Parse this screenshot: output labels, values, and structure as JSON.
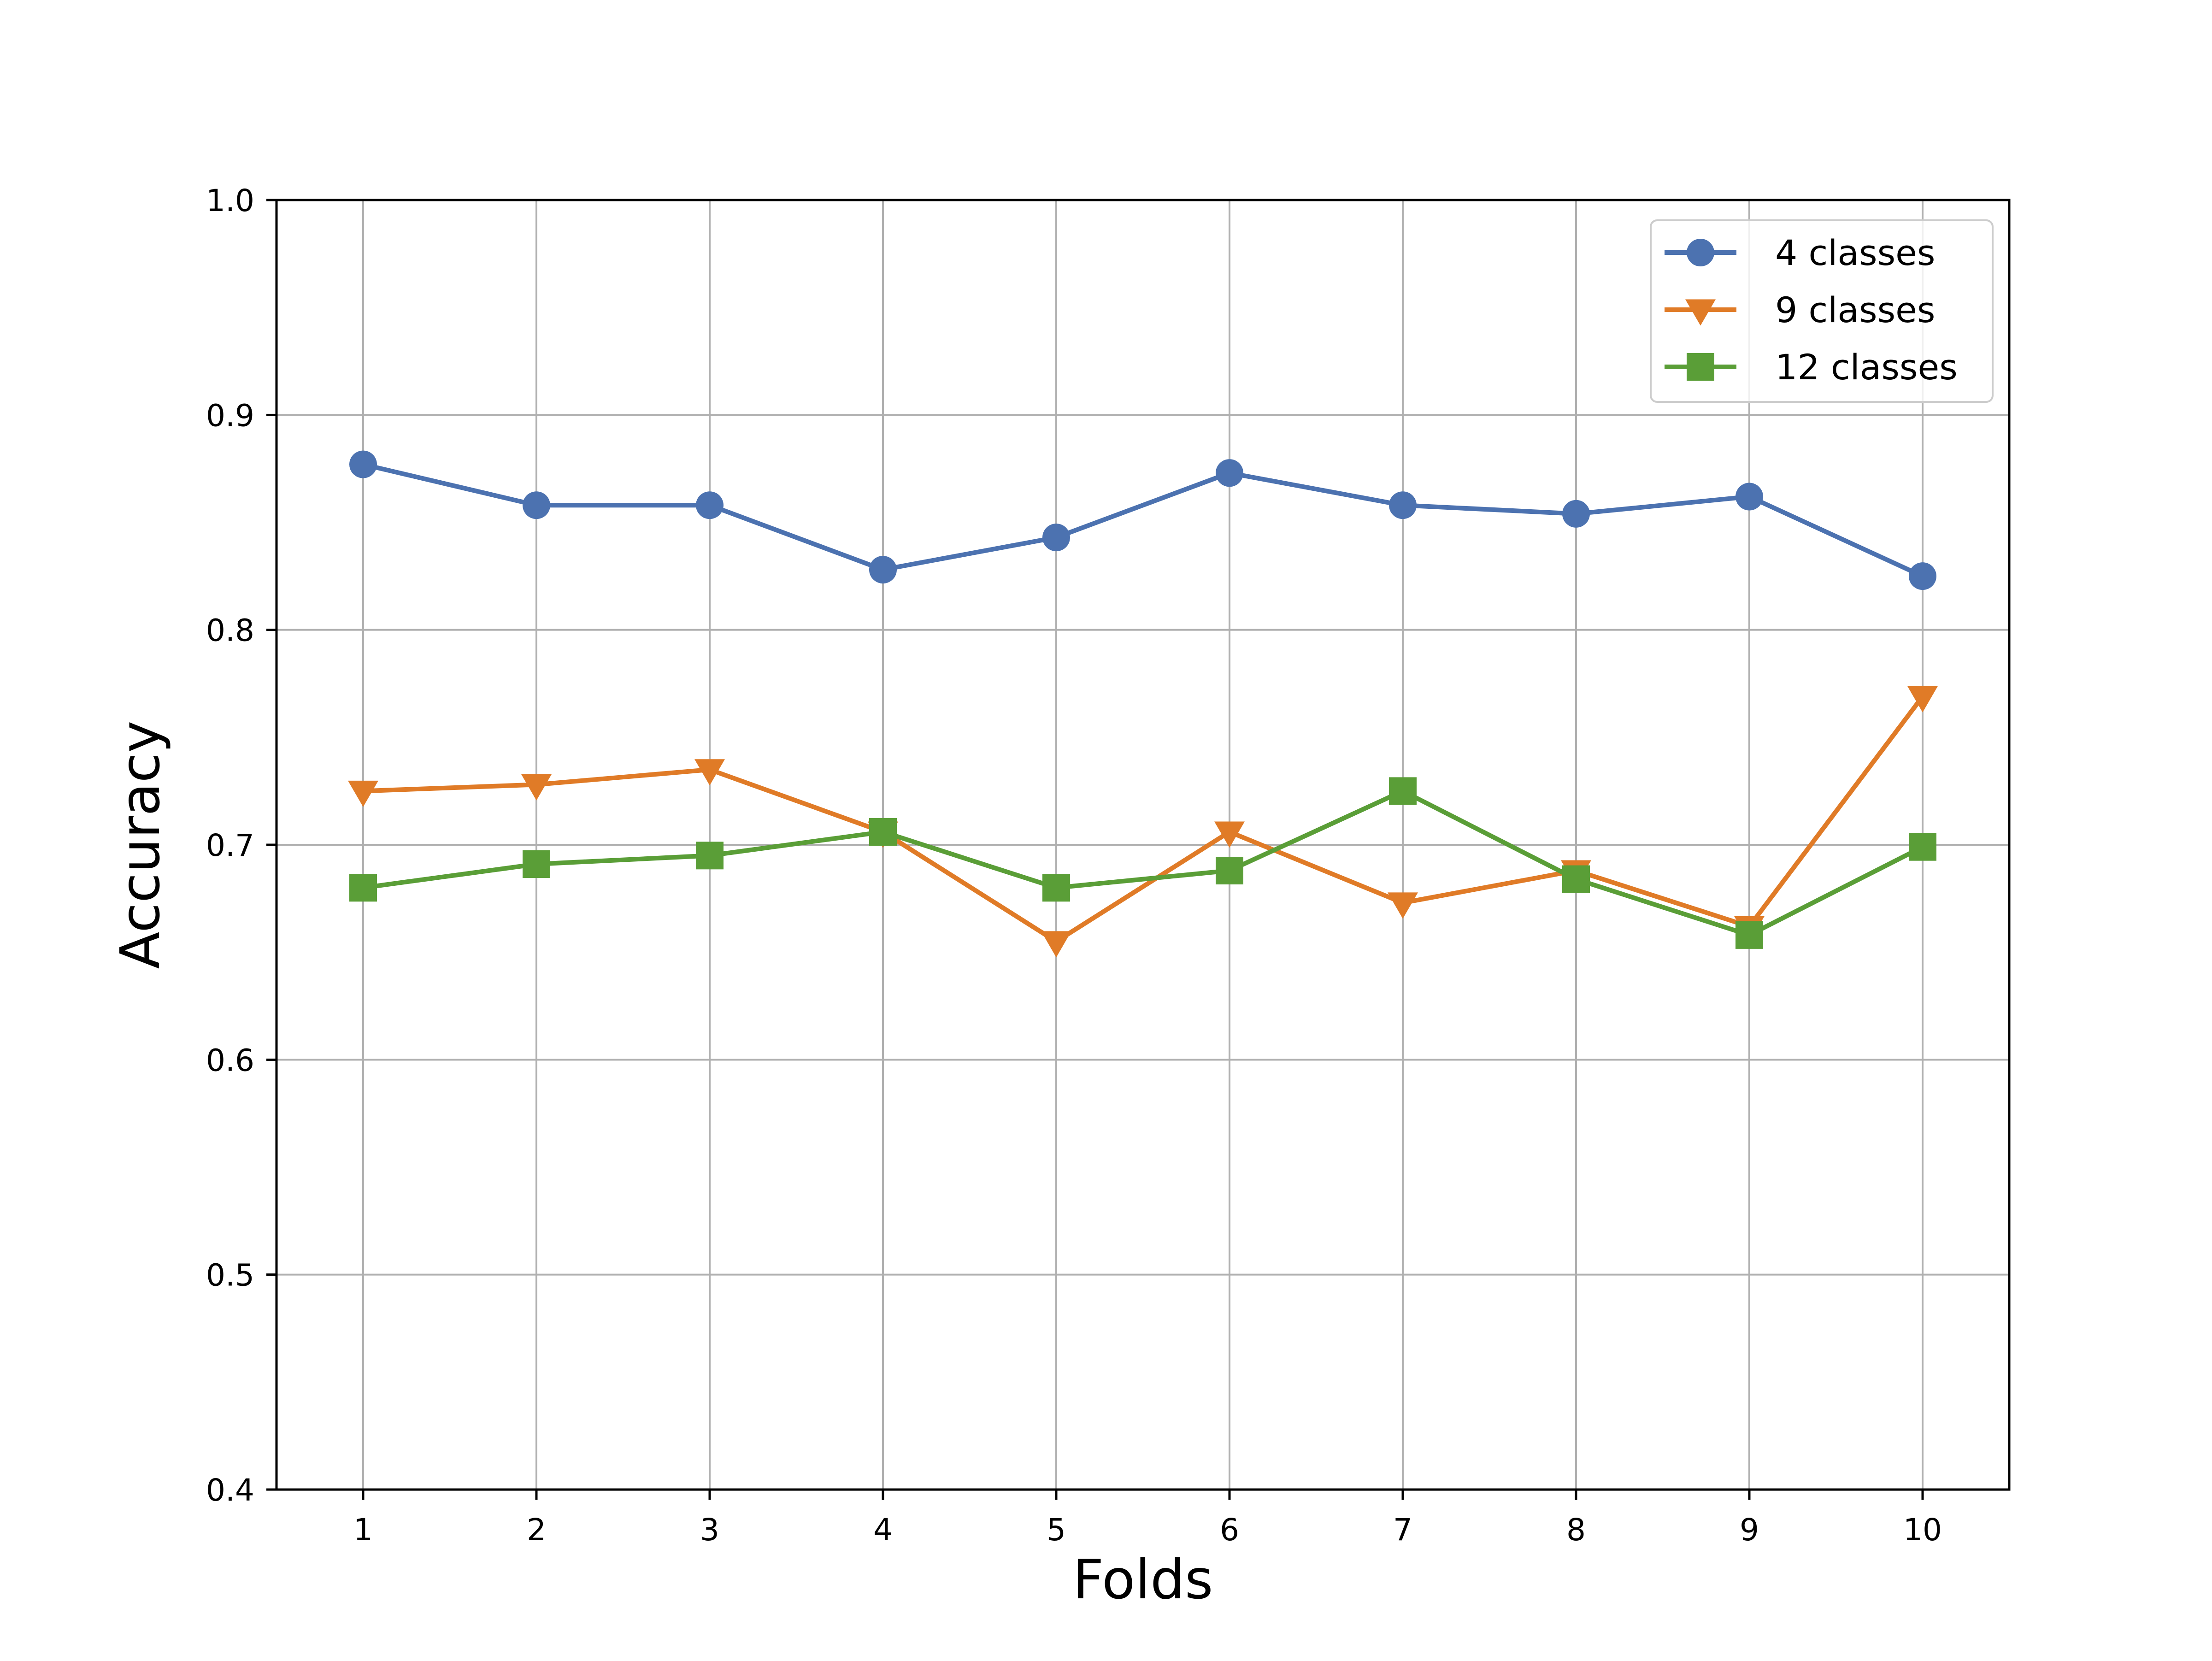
{
  "chart_data": {
    "type": "line",
    "title": "",
    "xlabel": "Folds",
    "ylabel": "Accuracy",
    "x": [
      1,
      2,
      3,
      4,
      5,
      6,
      7,
      8,
      9,
      10
    ],
    "x_ticks": [
      "1",
      "2",
      "3",
      "4",
      "5",
      "6",
      "7",
      "8",
      "9",
      "10"
    ],
    "xlim": [
      0.5,
      10.5
    ],
    "ylim": [
      0.4,
      1.0
    ],
    "y_ticks": [
      "0.4",
      "0.5",
      "0.6",
      "0.7",
      "0.8",
      "0.9",
      "1.0"
    ],
    "grid": true,
    "legend_position": "top-right",
    "series": [
      {
        "name": "4 classes",
        "marker": "circle",
        "color": "#4c72b0",
        "values": [
          0.877,
          0.858,
          0.858,
          0.828,
          0.843,
          0.873,
          0.858,
          0.854,
          0.862,
          0.825
        ]
      },
      {
        "name": "9 classes",
        "marker": "triangle-down",
        "color": "#e07b27",
        "values": [
          0.725,
          0.728,
          0.735,
          0.706,
          0.655,
          0.706,
          0.673,
          0.688,
          0.662,
          0.769
        ]
      },
      {
        "name": "12 classes",
        "marker": "square",
        "color": "#5a9e37",
        "values": [
          0.68,
          0.691,
          0.695,
          0.706,
          0.68,
          0.688,
          0.725,
          0.684,
          0.658,
          0.699
        ]
      }
    ]
  }
}
